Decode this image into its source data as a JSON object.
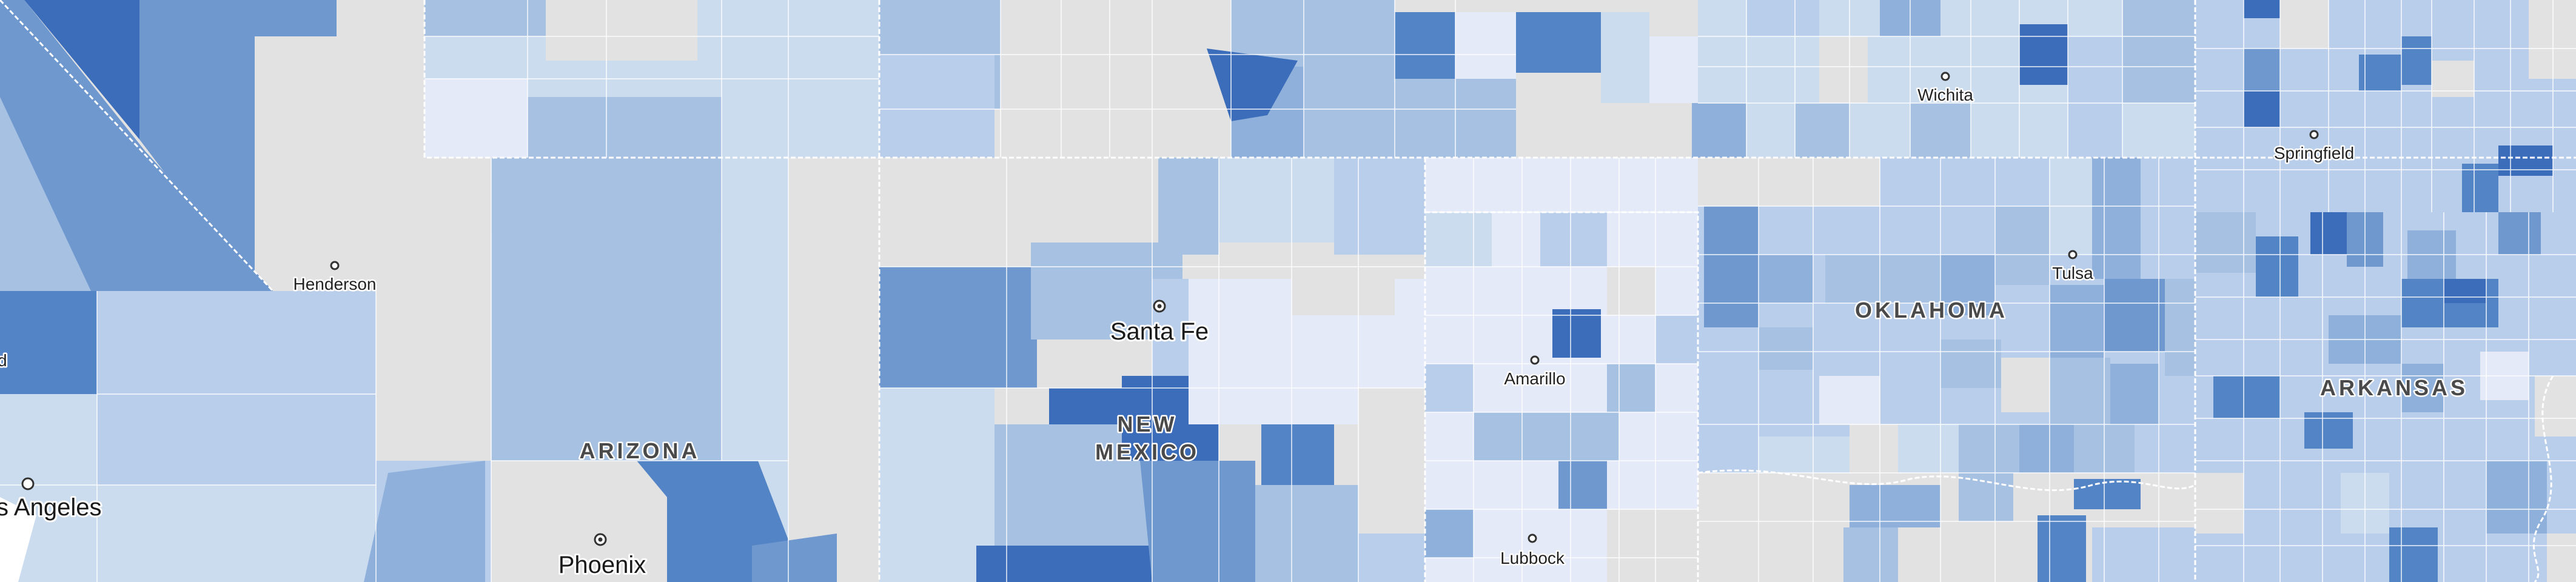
{
  "map": {
    "states": [
      {
        "label": "ARIZONA"
      },
      {
        "label": "NEW\nMEXICO"
      },
      {
        "label": "OKLAHOMA"
      },
      {
        "label": "ARKANSAS"
      }
    ],
    "cities": [
      {
        "label": "Henderson",
        "kind": "small"
      },
      {
        "label": "Phoenix",
        "kind": "capital-large"
      },
      {
        "label": "s Angeles",
        "kind": "large"
      },
      {
        "label": "Santa Fe",
        "kind": "capital-large"
      },
      {
        "label": "Amarillo",
        "kind": "small"
      },
      {
        "label": "Lubbock",
        "kind": "small"
      },
      {
        "label": "Wichita",
        "kind": "small"
      },
      {
        "label": "Tulsa",
        "kind": "small"
      },
      {
        "label": "Springfield",
        "kind": "small"
      },
      {
        "label": "d",
        "kind": "small"
      }
    ],
    "palette": {
      "no_data": "#e2e2e2",
      "scale": [
        "#e4eaf7",
        "#ccdcef",
        "#b9ceea",
        "#a7c1e2",
        "#8eb0db",
        "#6f98cf",
        "#5384c6",
        "#3c6dba"
      ],
      "border": "#ffffff",
      "water": "#ffffff"
    }
  }
}
